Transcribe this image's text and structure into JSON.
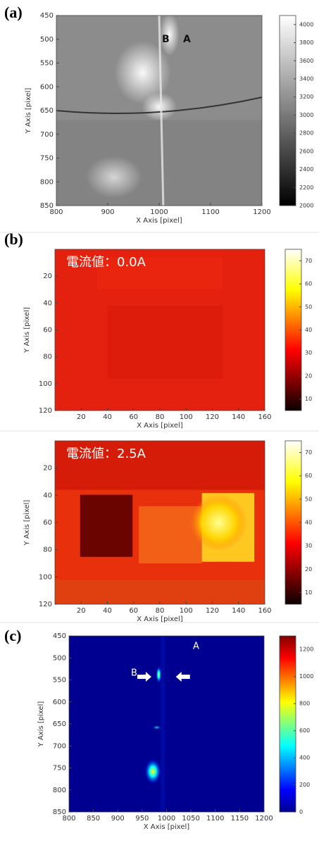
{
  "chart_data": [
    {
      "type": "image",
      "label": "(a)",
      "xlabel": "X Axis [pixel]",
      "ylabel": "Y Axis [pixel]",
      "xlim": [
        800,
        1200
      ],
      "ylim": [
        450,
        850
      ],
      "y_reversed": true,
      "xticks": [
        800,
        900,
        1000,
        1100,
        1200
      ],
      "yticks": [
        450,
        500,
        550,
        600,
        650,
        700,
        750,
        800,
        850
      ],
      "colormap": "gray",
      "clim": [
        2000,
        4100
      ],
      "cticks": [
        2000,
        2200,
        2400,
        2600,
        2800,
        3000,
        3200,
        3400,
        3600,
        3800,
        4000
      ],
      "annotations": [
        "B",
        "A"
      ]
    },
    {
      "type": "image",
      "label": "(b)",
      "xlabel": "X Axis [pixel]",
      "ylabel": "Y Axis [pixel]",
      "xlim": [
        0,
        160
      ],
      "ylim": [
        0,
        120
      ],
      "y_reversed": true,
      "xticks": [
        20,
        40,
        60,
        80,
        100,
        120,
        140,
        160
      ],
      "yticks": [
        20,
        40,
        60,
        80,
        100,
        120
      ],
      "colormap": "hot",
      "clim": [
        5,
        75
      ],
      "cticks": [
        10,
        20,
        30,
        40,
        50,
        60,
        70
      ],
      "annotations": [
        "電流値：0.0A"
      ]
    },
    {
      "type": "image",
      "xlabel": "X Axis [pixel]",
      "ylabel": "Y Axis [pixel]",
      "xlim": [
        0,
        160
      ],
      "ylim": [
        0,
        120
      ],
      "y_reversed": true,
      "xticks": [
        20,
        40,
        60,
        80,
        100,
        120,
        140,
        160
      ],
      "yticks": [
        20,
        40,
        60,
        80,
        100,
        120
      ],
      "colormap": "hot",
      "clim": [
        5,
        75
      ],
      "cticks": [
        10,
        20,
        30,
        40,
        50,
        60,
        70
      ],
      "annotations": [
        "電流値：2.5A"
      ]
    },
    {
      "type": "image",
      "label": "(c)",
      "xlabel": "X Axis [pixel]",
      "ylabel": "Y Axis [pixel]",
      "xlim": [
        800,
        1200
      ],
      "ylim": [
        450,
        850
      ],
      "y_reversed": true,
      "xticks": [
        800,
        850,
        900,
        950,
        1000,
        1050,
        1100,
        1150,
        1200
      ],
      "yticks": [
        450,
        500,
        550,
        600,
        650,
        700,
        750,
        800,
        850
      ],
      "colormap": "jet",
      "clim": [
        0,
        1300
      ],
      "cticks": [
        0,
        200,
        400,
        600,
        800,
        1000,
        1200
      ],
      "annotations": [
        "A",
        "B"
      ]
    }
  ]
}
